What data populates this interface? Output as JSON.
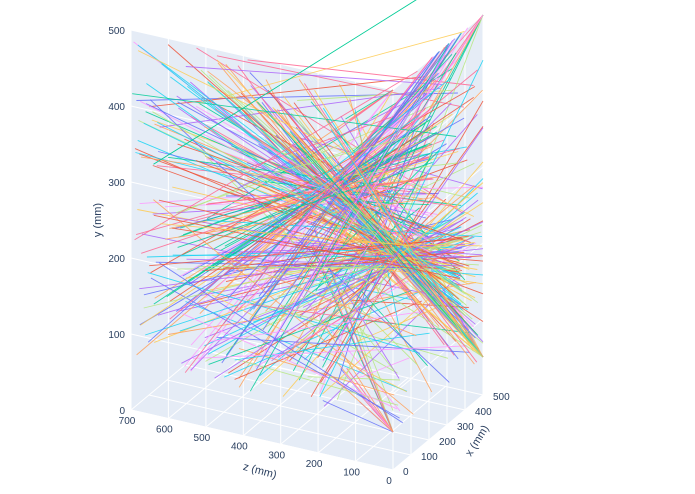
{
  "chart_data": {
    "type": "line3d",
    "title": "",
    "axes": {
      "x": {
        "label": "x (mm)",
        "range": [
          0,
          500
        ],
        "ticks": [
          0,
          100,
          200,
          300,
          400,
          500
        ]
      },
      "y": {
        "label": "y (mm)",
        "range": [
          0,
          500
        ],
        "ticks": [
          0,
          100,
          200,
          300,
          400,
          500
        ]
      },
      "z": {
        "label": "z (mm)",
        "range": [
          0,
          700
        ],
        "ticks": [
          0,
          100,
          200,
          300,
          400,
          500,
          600,
          700
        ]
      }
    },
    "grid": true,
    "legend": "none",
    "background_colors": {
      "back_pane": "#e5ecf6",
      "floor_pane": "#e5ecf6",
      "grid": "#ffffff",
      "text": "#2a3f5f"
    },
    "palette": [
      "#636efa",
      "#ef553b",
      "#00cc96",
      "#ab63fa",
      "#ffa15a",
      "#19d3f3",
      "#ff6692",
      "#b6e880",
      "#ff97ff",
      "#fecb52"
    ],
    "series_summary": {
      "count": 400,
      "description_of_lines": "straight line segments from the x=0 side face (varying z, y) to the z=0 side face (varying x, y)",
      "start_face": {
        "x": 0,
        "z_range": [
          80,
          700
        ],
        "y_range": [
          60,
          500
        ]
      },
      "end_face": {
        "z": 0,
        "x_range": [
          0,
          500
        ],
        "y_range": [
          50,
          500
        ]
      },
      "convergence_points": [
        {
          "x": 120,
          "y": 320,
          "z": 230
        },
        {
          "x": 300,
          "y": 210,
          "z": 120
        }
      ],
      "outlier": {
        "from": {
          "x": 0,
          "y": 330,
          "z": 640
        },
        "to": {
          "x": 500,
          "y": 575,
          "z": 0
        }
      }
    }
  }
}
